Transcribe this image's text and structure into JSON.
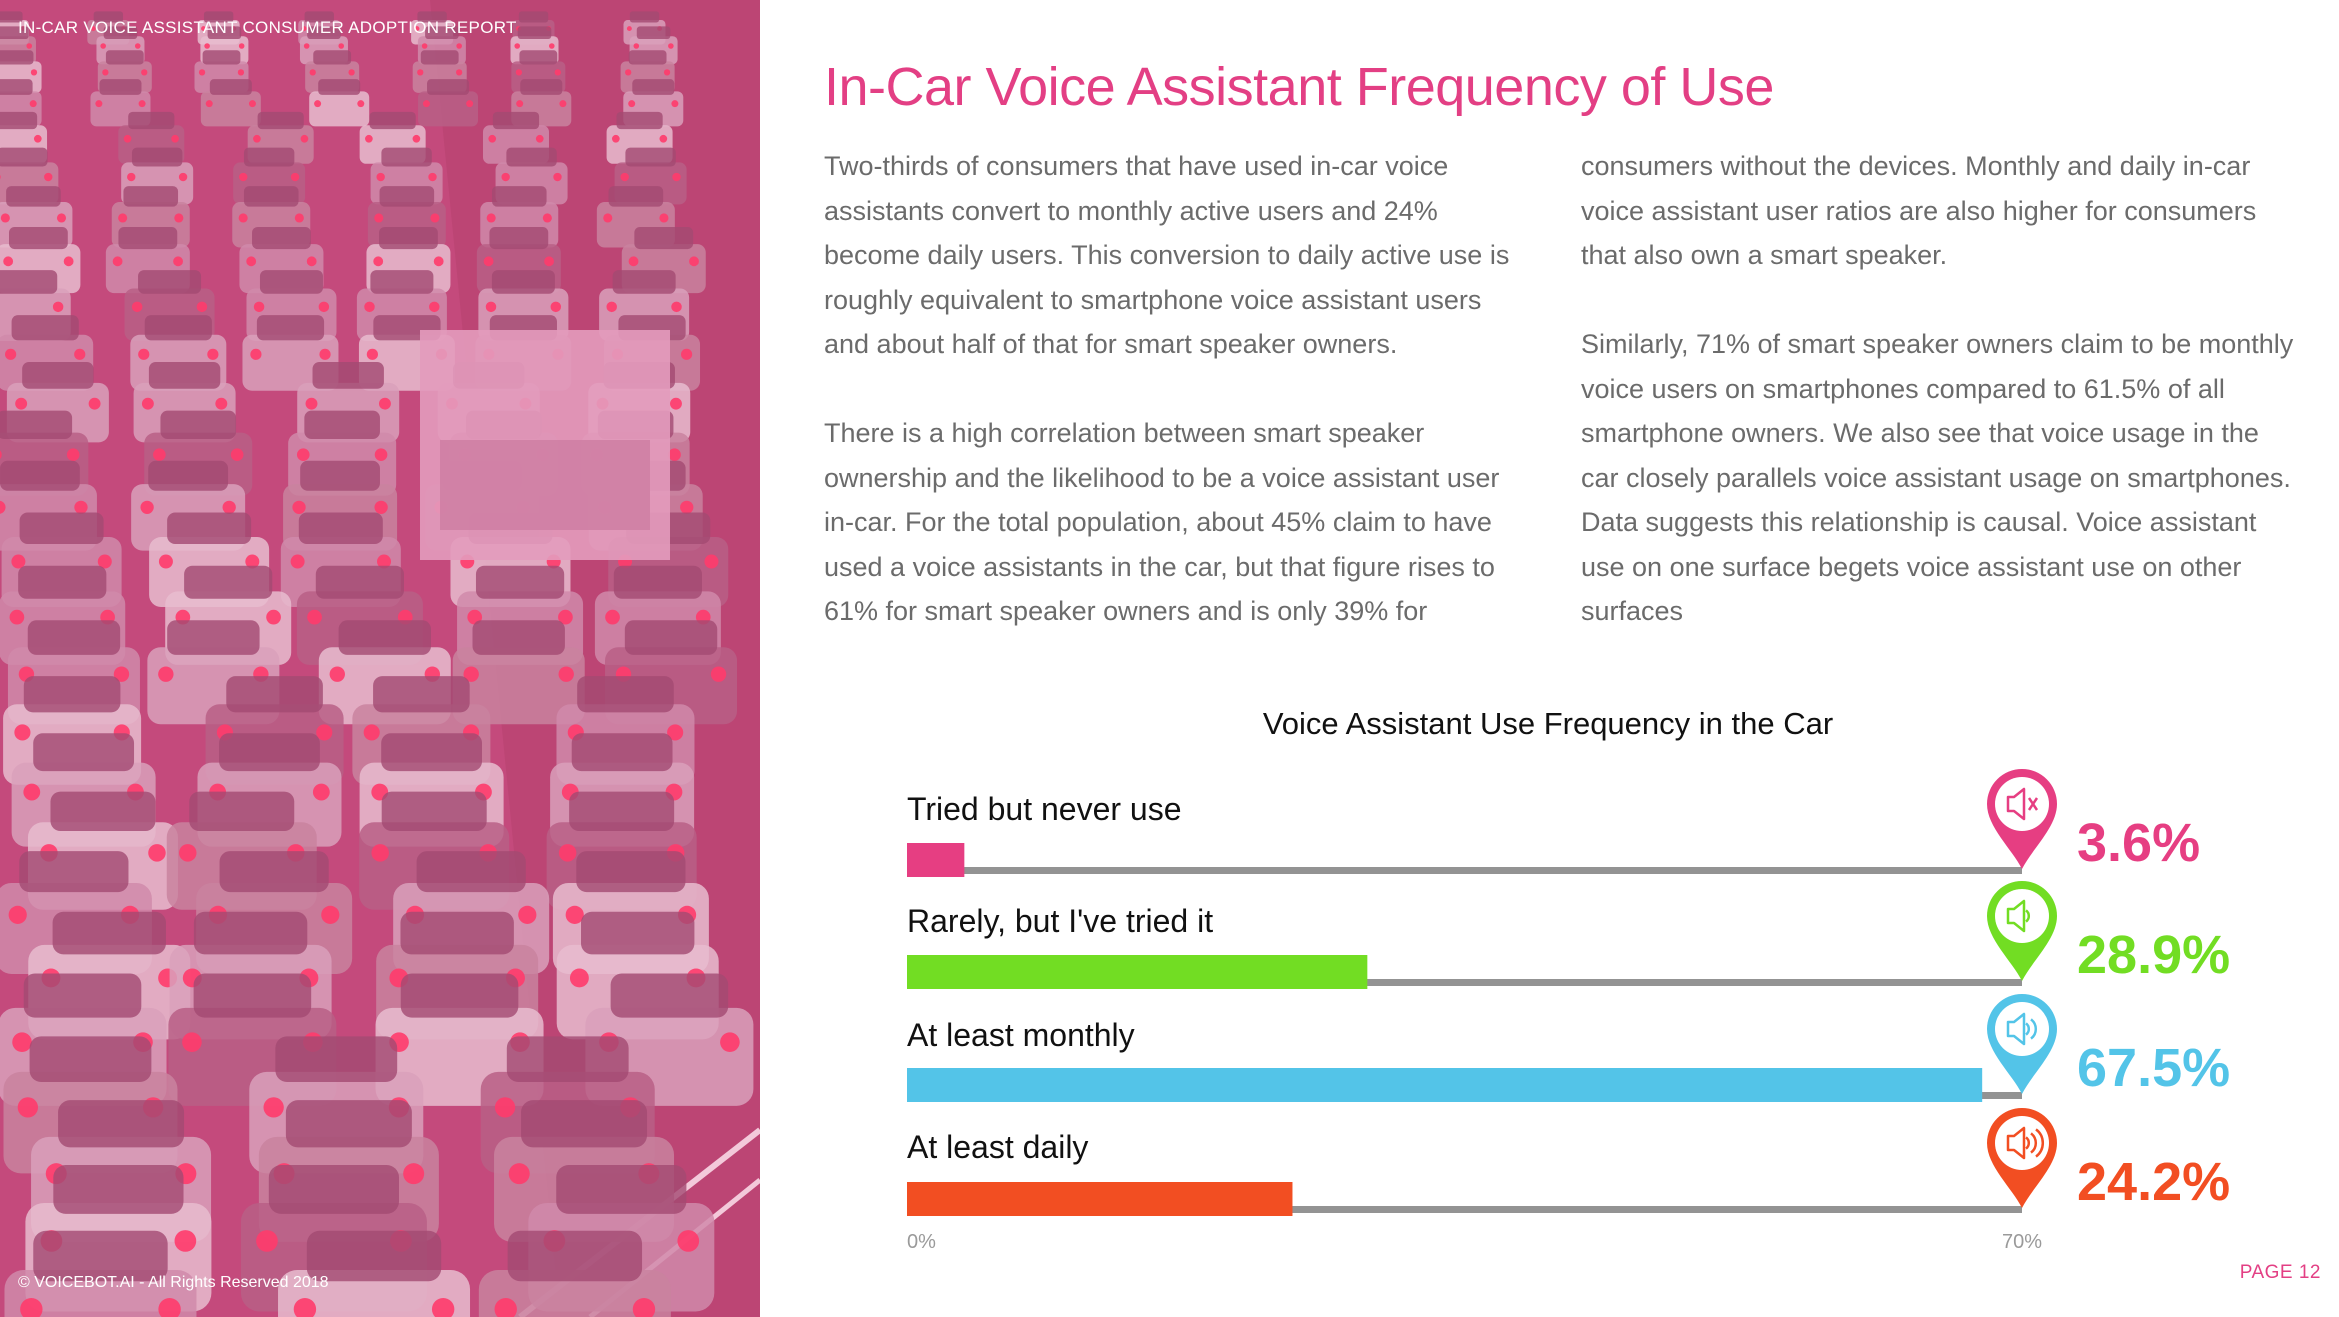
{
  "header": {
    "report_title": "IN-CAR VOICE ASSISTANT CONSUMER ADOPTION REPORT"
  },
  "footer": {
    "copyright": "© VOICEBOT.AI - All Rights Reserved 2018",
    "page": "PAGE 12"
  },
  "page_title": "In-Car Voice Assistant Frequency of Use",
  "body": {
    "left": [
      "Two-thirds of consumers that have used in-car voice assistants convert to monthly active users and 24% become daily users. This conversion to daily active use is roughly equivalent to smartphone voice assistant users and about half of that for smart speaker owners.",
      "There is a high correlation between smart speaker ownership and the likelihood to be a voice assistant user in-car. For the total population, about 45% claim to have used a voice assistants in the car, but that figure rises to 61% for smart speaker owners and is only 39% for"
    ],
    "right": [
      "consumers without the devices. Monthly and daily in-car voice assistant user ratios are also higher for consumers that also own a smart speaker.",
      "Similarly, 71% of smart speaker owners claim to be monthly voice users on smartphones compared to 61.5% of all smartphone owners. We also see that voice usage in the car closely parallels voice assistant usage on smartphones. Data suggests this relationship is causal. Voice assistant use on one surface begets voice assistant use on other surfaces"
    ]
  },
  "chart_data": {
    "type": "bar",
    "orientation": "horizontal",
    "title": "Voice Assistant Use Frequency in the Car",
    "categories": [
      "Tried but never use",
      "Rarely, but I've tried it",
      "At least monthly",
      "At least daily"
    ],
    "values": [
      3.6,
      28.9,
      67.5,
      24.2
    ],
    "value_labels": [
      "3.6%",
      "28.9%",
      "67.5%",
      "24.2%"
    ],
    "colors": [
      "#e63e82",
      "#72dd23",
      "#53c4e8",
      "#f24e22"
    ],
    "icons": [
      "speaker-mute-icon",
      "speaker-low-icon",
      "speaker-medium-icon",
      "speaker-high-icon"
    ],
    "xlim": [
      0,
      70
    ],
    "axis_min_label": "0%",
    "axis_max_label": "70%",
    "track_color": "#939393"
  }
}
